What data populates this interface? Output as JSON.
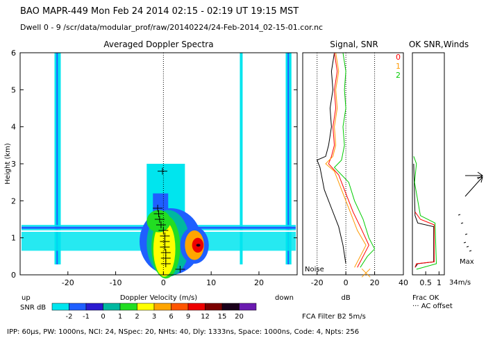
{
  "header": {
    "line1": "BAO  MAPR-449  Mon Feb 24 2014 02:15 - 02:19 UT 19:15 MST",
    "line2": "Dwell  0 -  9   /scr/data/modular_prof/raw/20140224/24-Feb-2014_02-15-01.cor.nc"
  },
  "footer": {
    "params": "IPP: 60μs, PW: 1000ns, NCI: 24, NSpec: 20, NHts: 40, Dly: 1333ns, Space: 1000ns, Code: 4, Npts: 256",
    "filter": "FCA Filter B2  5m/s"
  },
  "chart_data": [
    {
      "type": "heatmap",
      "title": "Averaged Doppler Spectra",
      "xlabel": "Doppler Velocity (m/s)",
      "ylabel": "Height (km)",
      "xlim": [
        -30,
        28
      ],
      "ylim": [
        0,
        6
      ],
      "x_ticks": [
        -20,
        -10,
        0,
        10,
        20
      ],
      "y_ticks": [
        0,
        1,
        2,
        3,
        4,
        5,
        6
      ],
      "left_label": "up",
      "right_label": "down",
      "colorbar": {
        "label": "SNR dB",
        "ticks": [
          "-2",
          "-1",
          "0",
          "1",
          "2",
          "3",
          "6",
          "9",
          "12",
          "15",
          "20"
        ],
        "colors": [
          "#00e5ee",
          "#1f5fff",
          "#2a1ad0",
          "#00b8a0",
          "#22dd22",
          "#ffff00",
          "#ffa500",
          "#ff5500",
          "#ee0000",
          "#7a0000",
          "#1a001a",
          "#6a1ab0"
        ]
      },
      "mean_velocity_profile": [
        {
          "h": 0.15,
          "v": 3.5
        },
        {
          "h": 0.3,
          "v": 0.5
        },
        {
          "h": 0.45,
          "v": 0.5
        },
        {
          "h": 0.6,
          "v": 0.5
        },
        {
          "h": 0.75,
          "v": 0.3
        },
        {
          "h": 0.9,
          "v": 0.3
        },
        {
          "h": 1.05,
          "v": 0.3
        },
        {
          "h": 1.2,
          "v": 0.0
        },
        {
          "h": 1.35,
          "v": -0.5
        },
        {
          "h": 1.5,
          "v": -0.8
        },
        {
          "h": 1.65,
          "v": -1.0
        },
        {
          "h": 1.8,
          "v": -1.2
        },
        {
          "h": 2.8,
          "v": -0.2
        }
      ]
    },
    {
      "type": "line",
      "title": "Signal, SNR",
      "xlabel": "dB",
      "xlim": [
        -30,
        40
      ],
      "ylim": [
        0,
        6
      ],
      "x_ticks": [
        -20,
        0,
        20,
        40
      ],
      "dotted_x": [
        -20,
        0,
        20
      ],
      "annotation": "Noise",
      "legend": [
        {
          "label": "0",
          "color": "#ff0000"
        },
        {
          "label": "1",
          "color": "#ff9900"
        },
        {
          "label": "2",
          "color": "#00cc00"
        }
      ],
      "series": [
        {
          "name": "noise",
          "color": "#000000",
          "points": [
            [
              -8,
              6.0
            ],
            [
              -10,
              5.5
            ],
            [
              -9,
              5.0
            ],
            [
              -11,
              4.5
            ],
            [
              -10,
              4.0
            ],
            [
              -12,
              3.5
            ],
            [
              -14,
              3.2
            ],
            [
              -20,
              3.1
            ],
            [
              -18,
              2.9
            ],
            [
              -15,
              2.3
            ],
            [
              -10,
              1.8
            ],
            [
              -5,
              1.3
            ],
            [
              -2,
              0.8
            ],
            [
              0,
              0.3
            ]
          ]
        },
        {
          "name": "0",
          "color": "#ff0000",
          "points": [
            [
              -8,
              6.0
            ],
            [
              -6,
              5.5
            ],
            [
              -8,
              5.0
            ],
            [
              -7,
              4.5
            ],
            [
              -9,
              4.0
            ],
            [
              -8,
              3.5
            ],
            [
              -10,
              3.2
            ],
            [
              -12,
              3.0
            ],
            [
              -5,
              2.7
            ],
            [
              0,
              2.2
            ],
            [
              5,
              1.7
            ],
            [
              10,
              1.3
            ],
            [
              16,
              0.8
            ],
            [
              12,
              0.5
            ],
            [
              8,
              0.2
            ]
          ]
        },
        {
          "name": "1",
          "color": "#ff9900",
          "points": [
            [
              -7,
              6.0
            ],
            [
              -5,
              5.5
            ],
            [
              -7,
              5.0
            ],
            [
              -6,
              4.5
            ],
            [
              -8,
              4.0
            ],
            [
              -7,
              3.5
            ],
            [
              -9,
              3.2
            ],
            [
              -14,
              3.0
            ],
            [
              -8,
              2.8
            ],
            [
              -2,
              2.2
            ],
            [
              3,
              1.7
            ],
            [
              8,
              1.2
            ],
            [
              14,
              0.8
            ],
            [
              10,
              0.5
            ],
            [
              6,
              0.2
            ]
          ]
        },
        {
          "name": "2",
          "color": "#00cc00",
          "points": [
            [
              -2,
              6.0
            ],
            [
              0,
              5.5
            ],
            [
              -1,
              5.0
            ],
            [
              0,
              4.5
            ],
            [
              -2,
              4.0
            ],
            [
              -1,
              3.5
            ],
            [
              -3,
              3.1
            ],
            [
              -8,
              2.9
            ],
            [
              2,
              2.5
            ],
            [
              6,
              2.0
            ],
            [
              12,
              1.5
            ],
            [
              16,
              1.0
            ],
            [
              20,
              0.7
            ],
            [
              15,
              0.5
            ],
            [
              10,
              0.2
            ]
          ]
        }
      ]
    },
    {
      "type": "line",
      "title": "OK SNR,Winds",
      "xlim": [
        0,
        1.2
      ],
      "ylim": [
        0,
        6
      ],
      "x_ticks": [
        0.5,
        1
      ],
      "x_tick_labels": [
        "0.5",
        "1"
      ],
      "legend": [
        "Frac OK",
        "AC offset"
      ],
      "series": [
        {
          "name": "frac ok",
          "color": "#000000",
          "points": [
            [
              0.1,
              0.2
            ],
            [
              0.2,
              0.3
            ],
            [
              0.8,
              0.35
            ],
            [
              0.8,
              1.3
            ],
            [
              0.2,
              1.4
            ],
            [
              0.1,
              1.6
            ],
            [
              0.05,
              3.0
            ]
          ]
        },
        {
          "name": "red",
          "color": "#ff0000",
          "points": [
            [
              0.1,
              0.2
            ],
            [
              0.15,
              0.3
            ],
            [
              0.82,
              0.35
            ],
            [
              0.82,
              1.35
            ],
            [
              0.3,
              1.5
            ],
            [
              0.1,
              1.7
            ]
          ]
        },
        {
          "name": "green",
          "color": "#00cc00",
          "points": [
            [
              0.15,
              0.15
            ],
            [
              0.9,
              0.3
            ],
            [
              0.85,
              1.4
            ],
            [
              0.3,
              1.6
            ],
            [
              0.08,
              2.5
            ],
            [
              0.15,
              3.0
            ],
            [
              0.05,
              3.2
            ]
          ]
        }
      ]
    },
    {
      "type": "scatter",
      "title": "",
      "legend_label": "Max",
      "legend_value": "34m/s",
      "ylim": [
        0,
        6
      ]
    }
  ]
}
